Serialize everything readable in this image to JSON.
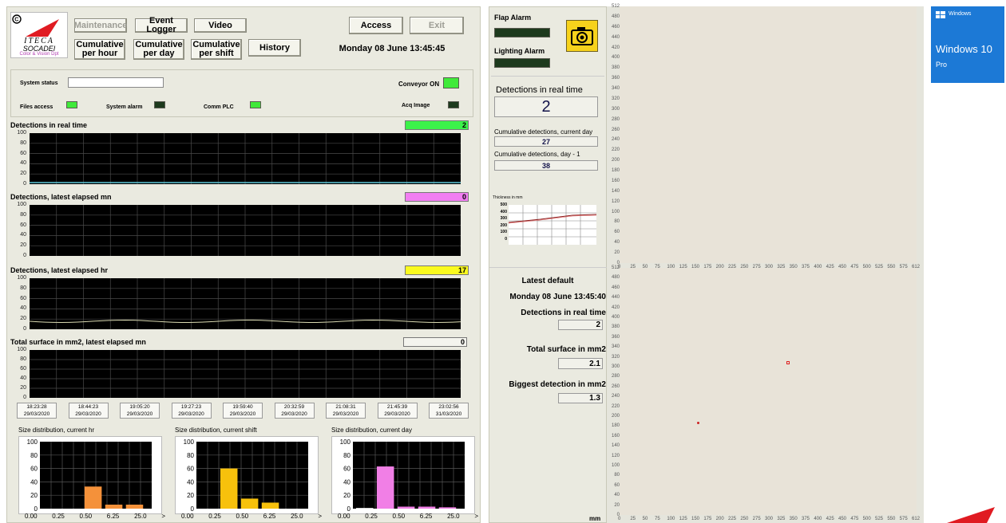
{
  "header": {
    "logo_text_1": "ITECA",
    "logo_text_2": "SOCADEI",
    "logo_text_3": "Color & Vision Dpt",
    "datetime": "Monday 08 June  13:45:45"
  },
  "buttons": {
    "maintenance": "Maintenance",
    "event_logger": "Event Logger",
    "video": "Video",
    "access": "Access",
    "exit": "Exit",
    "cum_hour": "Cumulative per hour",
    "cum_day": "Cumulative per day",
    "cum_shift": "Cumulative per shift",
    "history": "History"
  },
  "status": {
    "system_status_label": "System status",
    "system_status_value": "",
    "conveyor": "Conveyor ON",
    "files_access": "Files access",
    "system_alarm": "System alarm",
    "comm_plc": "Comm PLC",
    "acq_image": "Acq Image"
  },
  "charts": {
    "realtime": {
      "title": "Detections in real time",
      "value": "2",
      "color": "#3cf24a"
    },
    "latest_mn": {
      "title": "Detections, latest elapsed mn",
      "value": "0",
      "color": "#f27ef2"
    },
    "latest_hr": {
      "title": "Detections, latest elapsed hr",
      "value": "17",
      "color": "#fafa1e"
    },
    "surface_mn": {
      "title": "Total surface in mm2, latest elapsed mn",
      "value": "0",
      "color": "#f4f4ee"
    },
    "y_ticks": [
      "100",
      "80",
      "60",
      "40",
      "20",
      "0"
    ]
  },
  "timestamps": [
    {
      "time": "18:23:28",
      "date": "29/03/2020"
    },
    {
      "time": "18:44:23",
      "date": "29/03/2020"
    },
    {
      "time": "19:05:20",
      "date": "29/03/2020"
    },
    {
      "time": "19:27:23",
      "date": "29/03/2020"
    },
    {
      "time": "19:59:40",
      "date": "29/03/2020"
    },
    {
      "time": "20:32:59",
      "date": "29/03/2020"
    },
    {
      "time": "21:08:31",
      "date": "29/03/2020"
    },
    {
      "time": "21:45:39",
      "date": "29/03/2020"
    },
    {
      "time": "23:02:56",
      "date": "31/03/2020"
    }
  ],
  "histograms": [
    {
      "title": "Size distribution, current hr",
      "color": "#f4913a",
      "values": [
        0,
        0,
        33,
        6,
        6
      ]
    },
    {
      "title": "Size distribution, current shift",
      "color": "#f7c10c",
      "values": [
        0,
        60,
        15,
        9,
        0
      ]
    },
    {
      "title": "Size distribution, current day",
      "color": "#f17fe6",
      "values": [
        1,
        63,
        3,
        3,
        2
      ]
    }
  ],
  "hist_axis": {
    "y_ticks": [
      "100",
      "80",
      "60",
      "40",
      "20",
      "0"
    ],
    "x_ticks": [
      "0.00",
      "0.25",
      "0.50",
      "6.25",
      "25.0",
      ">"
    ]
  },
  "middle": {
    "flap_alarm": "Flap Alarm",
    "lighting_alarm": "Lighting Alarm",
    "realtime_title": "Detections in real time",
    "realtime_value": "2",
    "cum_current_label": "Cumulative detections, current day",
    "cum_current_value": "27",
    "cum_prev_label": "Cumulative detections, day - 1",
    "cum_prev_value": "38",
    "thickness_label": "Thickness in mm",
    "thickness_ticks": [
      "500",
      "400",
      "300",
      "200",
      "100",
      "0"
    ],
    "latest_default": "Latest default",
    "latest_datetime": "Monday 08 June  13:45:40",
    "det_rt_label": "Detections in real time",
    "det_rt_value": "2",
    "surface_label": "Total surface in mm2",
    "surface_value": "2.1",
    "biggest_label": "Biggest detection in mm2",
    "biggest_value": "1.3"
  },
  "image_axes": {
    "y_ticks": [
      "512",
      "480",
      "460",
      "440",
      "420",
      "400",
      "380",
      "360",
      "340",
      "320",
      "300",
      "280",
      "260",
      "240",
      "220",
      "200",
      "180",
      "160",
      "140",
      "120",
      "100",
      "80",
      "60",
      "40",
      "20",
      "0"
    ],
    "x_ticks": [
      "0",
      "25",
      "50",
      "75",
      "100",
      "125",
      "150",
      "175",
      "200",
      "225",
      "250",
      "275",
      "300",
      "325",
      "350",
      "375",
      "400",
      "425",
      "450",
      "475",
      "500",
      "525",
      "550",
      "575",
      "612"
    ],
    "x_unit": "mm"
  },
  "windows": {
    "small": "Windows",
    "name": "Windows 10",
    "edition": "Pro"
  }
}
